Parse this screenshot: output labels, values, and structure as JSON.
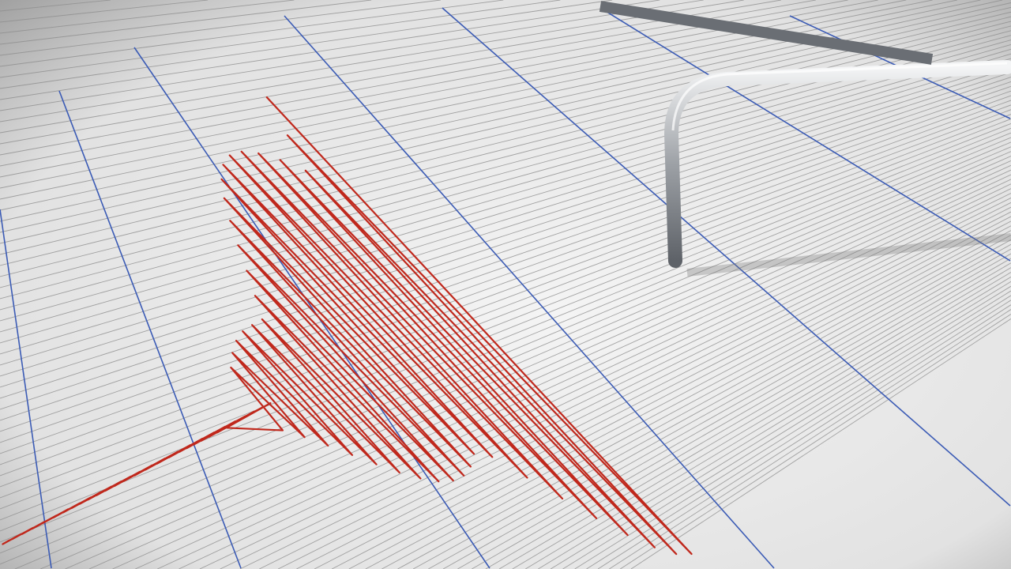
{
  "image": {
    "subject": "seismograph",
    "colors": {
      "paper": "#ececec",
      "grid_line": "#8f8f8f",
      "major_line": "#3b5bb5",
      "trace": "#c0281c",
      "needle": "#b9bcc0"
    }
  }
}
